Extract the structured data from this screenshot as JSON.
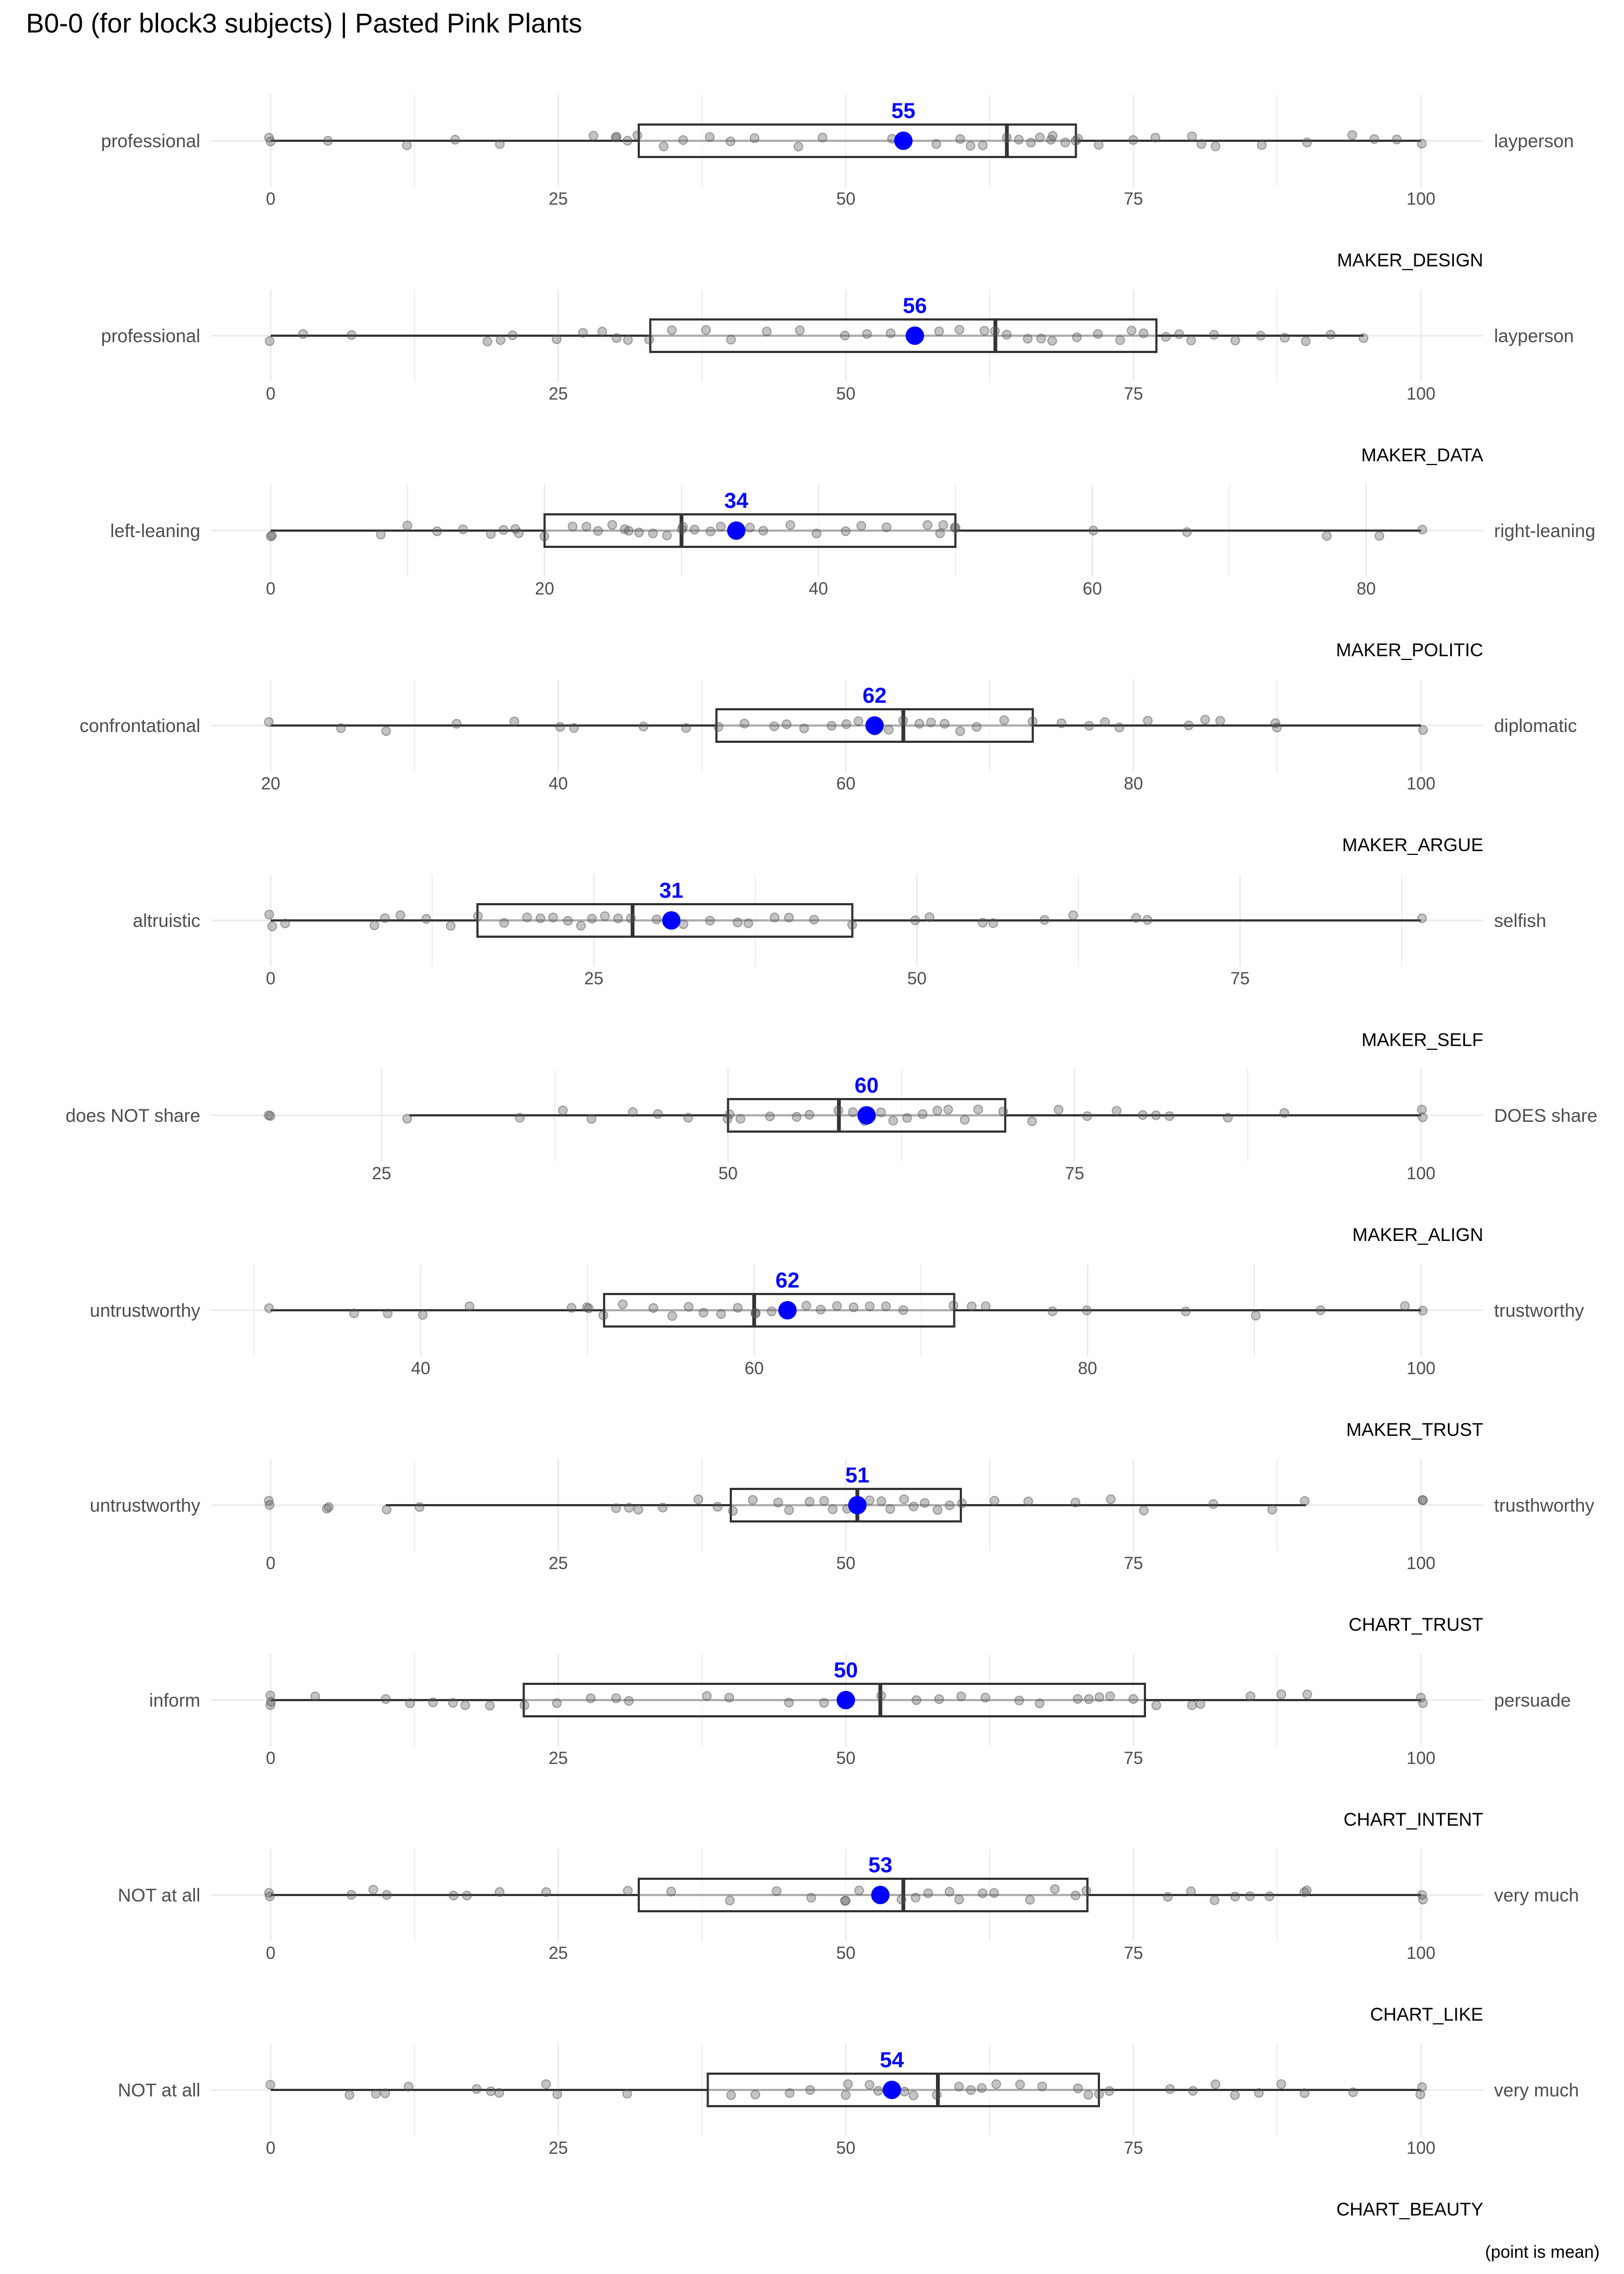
{
  "title": "B0-0 (for block3 subjects) | Pasted Pink Plants",
  "caption": "(point is mean)",
  "colors": {
    "mean": "#0000ff",
    "box": "#333333",
    "whisker": "#333333",
    "point": "#555555",
    "grid": "#ebebeb"
  },
  "chart_data": [
    {
      "type": "box",
      "variable": "MAKER_DESIGN",
      "left_label": "professional",
      "right_label": "layperson",
      "xlim": [
        0,
        100
      ],
      "ticks": [
        0,
        25,
        50,
        75,
        100
      ],
      "whisker_low": 0,
      "q1": 32,
      "median": 64,
      "q3": 70,
      "whisker_high": 100,
      "mean": 55,
      "mean_label": "55",
      "points": [
        0,
        0,
        5,
        12,
        16,
        20,
        28,
        30,
        30,
        31,
        32,
        34,
        36,
        38,
        40,
        42,
        46,
        48,
        54,
        58,
        60,
        61,
        62,
        64,
        65,
        66,
        67,
        68,
        68,
        69,
        70,
        70,
        72,
        75,
        77,
        80,
        81,
        82,
        86,
        90,
        94,
        96,
        98,
        100
      ]
    },
    {
      "type": "box",
      "variable": "MAKER_DATA",
      "left_label": "professional",
      "right_label": "layperson",
      "xlim": [
        0,
        100
      ],
      "ticks": [
        0,
        25,
        50,
        75,
        100
      ],
      "whisker_low": 0,
      "q1": 33,
      "median": 63,
      "q3": 77,
      "whisker_high": 95,
      "mean": 56,
      "mean_label": "56",
      "points": [
        0,
        3,
        7,
        19,
        20,
        21,
        25,
        27,
        29,
        30,
        31,
        33,
        35,
        38,
        40,
        43,
        46,
        50,
        52,
        54,
        58,
        60,
        62,
        63,
        64,
        66,
        67,
        68,
        70,
        72,
        74,
        75,
        76,
        78,
        79,
        80,
        82,
        84,
        86,
        88,
        90,
        92,
        95
      ]
    },
    {
      "type": "box",
      "variable": "MAKER_POLITIC",
      "left_label": "left-leaning",
      "right_label": "right-leaning",
      "xlim": [
        0,
        84
      ],
      "ticks": [
        0,
        20,
        40,
        60,
        80
      ],
      "whisker_low": 0,
      "q1": 20,
      "median": 30,
      "q3": 50,
      "whisker_high": 84,
      "mean": 34,
      "mean_label": "34",
      "points": [
        0,
        0,
        8,
        10,
        12,
        14,
        16,
        17,
        18,
        18,
        20,
        22,
        23,
        24,
        25,
        26,
        26,
        27,
        28,
        29,
        30,
        30,
        31,
        32,
        33,
        35,
        36,
        38,
        40,
        42,
        43,
        45,
        48,
        49,
        49,
        50,
        50,
        60,
        67,
        77,
        81,
        84
      ]
    },
    {
      "type": "box",
      "variable": "MAKER_ARGUE",
      "left_label": "confrontational",
      "right_label": "diplomatic",
      "xlim": [
        20,
        100
      ],
      "ticks": [
        20,
        40,
        60,
        80,
        100
      ],
      "whisker_low": 20,
      "q1": 51,
      "median": 64,
      "q3": 73,
      "whisker_high": 100,
      "mean": 62,
      "mean_label": "62",
      "points": [
        20,
        25,
        28,
        33,
        37,
        40,
        41,
        46,
        49,
        51,
        53,
        55,
        56,
        57,
        59,
        60,
        61,
        62,
        62,
        63,
        64,
        65,
        66,
        67,
        68,
        69,
        71,
        73,
        75,
        77,
        78,
        79,
        81,
        84,
        85,
        86,
        90,
        90,
        100
      ]
    },
    {
      "type": "box",
      "variable": "MAKER_SELF",
      "left_label": "altruistic",
      "right_label": "selfish",
      "xlim": [
        0,
        89
      ],
      "ticks": [
        0,
        25,
        50,
        75
      ],
      "whisker_low": 0,
      "q1": 16,
      "median": 28,
      "q3": 45,
      "whisker_high": 89,
      "mean": 31,
      "mean_label": "31",
      "points": [
        0,
        0,
        1,
        8,
        9,
        10,
        12,
        14,
        16,
        18,
        20,
        21,
        22,
        23,
        24,
        25,
        26,
        27,
        28,
        30,
        32,
        34,
        36,
        37,
        39,
        40,
        42,
        45,
        50,
        51,
        55,
        56,
        60,
        62,
        67,
        68,
        89
      ]
    },
    {
      "type": "box",
      "variable": "MAKER_ALIGN",
      "left_label": "does NOT share",
      "right_label": "DOES share",
      "xlim": [
        17,
        100
      ],
      "ticks": [
        25,
        50,
        75,
        100
      ],
      "whisker_low": 27,
      "q1": 50,
      "median": 58,
      "q3": 70,
      "whisker_high": 100,
      "mean": 60,
      "mean_label": "60",
      "points": [
        17,
        17,
        27,
        35,
        38,
        40,
        43,
        45,
        47,
        50,
        50,
        51,
        53,
        55,
        56,
        58,
        59,
        60,
        61,
        62,
        63,
        64,
        65,
        66,
        67,
        68,
        70,
        72,
        74,
        76,
        78,
        80,
        81,
        82,
        86,
        90,
        100,
        100
      ]
    },
    {
      "type": "box",
      "variable": "MAKER_TRUST",
      "left_label": "untrustworthy",
      "right_label": "trustworthy",
      "xlim": [
        31,
        100
      ],
      "ticks": [
        40,
        60,
        80,
        100
      ],
      "whisker_low": 31,
      "q1": 51,
      "median": 60,
      "q3": 72,
      "whisker_high": 100,
      "mean": 62,
      "mean_label": "62",
      "points": [
        31,
        36,
        38,
        40,
        43,
        49,
        50,
        50,
        51,
        52,
        54,
        55,
        56,
        57,
        58,
        59,
        60,
        60,
        61,
        62,
        63,
        64,
        65,
        66,
        67,
        68,
        69,
        72,
        73,
        74,
        78,
        80,
        86,
        90,
        94,
        99,
        100
      ]
    },
    {
      "type": "box",
      "variable": "CHART_TRUST",
      "left_label": "untrustworthy",
      "right_label": "trusthworthy",
      "xlim": [
        0,
        100
      ],
      "ticks": [
        0,
        25,
        50,
        75,
        100
      ],
      "whisker_low": 10,
      "q1": 40,
      "median": 51,
      "q3": 60,
      "whisker_high": 90,
      "mean": 51,
      "mean_label": "51",
      "points": [
        0,
        0,
        5,
        5,
        10,
        13,
        30,
        31,
        32,
        34,
        37,
        39,
        40,
        42,
        44,
        45,
        47,
        48,
        49,
        50,
        51,
        52,
        53,
        54,
        55,
        56,
        57,
        58,
        59,
        60,
        63,
        66,
        70,
        73,
        76,
        82,
        87,
        90,
        100,
        100
      ]
    },
    {
      "type": "box",
      "variable": "CHART_INTENT",
      "left_label": "inform",
      "right_label": "persuade",
      "xlim": [
        0,
        100
      ],
      "ticks": [
        0,
        25,
        50,
        75,
        100
      ],
      "whisker_low": 0,
      "q1": 22,
      "median": 53,
      "q3": 76,
      "whisker_high": 100,
      "mean": 50,
      "mean_label": "50",
      "points": [
        0,
        0,
        0,
        4,
        10,
        12,
        14,
        16,
        17,
        19,
        22,
        25,
        28,
        30,
        31,
        38,
        40,
        45,
        48,
        53,
        56,
        58,
        60,
        62,
        65,
        67,
        70,
        71,
        72,
        73,
        75,
        77,
        80,
        81,
        85,
        88,
        90,
        100,
        100
      ]
    },
    {
      "type": "box",
      "variable": "CHART_LIKE",
      "left_label": "NOT at all",
      "right_label": "very much",
      "xlim": [
        0,
        100
      ],
      "ticks": [
        0,
        25,
        50,
        75,
        100
      ],
      "whisker_low": 0,
      "q1": 32,
      "median": 55,
      "q3": 71,
      "whisker_high": 100,
      "mean": 53,
      "mean_label": "53",
      "points": [
        0,
        0,
        7,
        9,
        10,
        16,
        17,
        20,
        24,
        31,
        35,
        40,
        44,
        47,
        50,
        50,
        51,
        53,
        55,
        56,
        57,
        59,
        60,
        62,
        63,
        66,
        68,
        70,
        71,
        78,
        80,
        82,
        84,
        85,
        87,
        90,
        90,
        100,
        100
      ]
    },
    {
      "type": "box",
      "variable": "CHART_BEAUTY",
      "left_label": "NOT at all",
      "right_label": "very much",
      "xlim": [
        0,
        100
      ],
      "ticks": [
        0,
        25,
        50,
        75,
        100
      ],
      "whisker_low": 0,
      "q1": 38,
      "median": 58,
      "q3": 72,
      "whisker_high": 100,
      "mean": 54,
      "mean_label": "54",
      "points": [
        0,
        7,
        9,
        10,
        12,
        18,
        19,
        20,
        24,
        25,
        31,
        40,
        42,
        45,
        47,
        50,
        50,
        52,
        53,
        55,
        56,
        58,
        60,
        61,
        62,
        63,
        65,
        67,
        70,
        71,
        72,
        73,
        78,
        80,
        82,
        84,
        86,
        88,
        90,
        94,
        100,
        100
      ]
    }
  ]
}
